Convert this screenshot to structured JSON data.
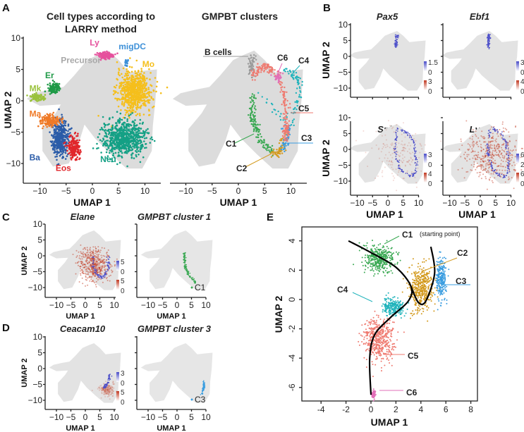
{
  "panel_labels": [
    "A",
    "B",
    "C",
    "D",
    "E"
  ],
  "colors": {
    "Mo": "#f5bf1c",
    "Neu": "#14a085",
    "Ba": "#2b5ca8",
    "Eos": "#e1262b",
    "Ma": "#ef7a27",
    "Er": "#1f9a47",
    "Mk": "#9ac23c",
    "Ly": "#e6519d",
    "migDC": "#3d90d8",
    "Precursor": "#d9d9d9",
    "C1": "#39a852",
    "C2": "#d39a1e",
    "C3": "#3a9de0",
    "C4": "#1fb3bb",
    "C5": "#ef7a70",
    "C6": "#e26fb8",
    "Bcells": "#9a9a9a",
    "expr_low": "#c23a22",
    "expr_high": "#4a4dc9"
  },
  "chart_data": [
    {
      "id": "A-left",
      "type": "scatter",
      "title": "Cell types according to LARRY method",
      "xlabel": "UMAP 1",
      "ylabel": "UMAP 2",
      "xlim": [
        -13,
        13
      ],
      "ylim": [
        -13,
        10
      ],
      "xticks": [
        -10,
        -5,
        0,
        5,
        10
      ],
      "yticks": [
        10,
        5,
        0,
        -5,
        -10
      ],
      "groups": [
        {
          "name": "Mo",
          "center": [
            8,
            1.5
          ],
          "spread": [
            3.2,
            3.2
          ],
          "n": 700
        },
        {
          "name": "Neu",
          "center": [
            6,
            -6
          ],
          "spread": [
            4,
            2.8
          ],
          "n": 700
        },
        {
          "name": "Ba",
          "center": [
            -6,
            -6
          ],
          "spread": [
            1.6,
            2.8
          ],
          "n": 400
        },
        {
          "name": "Eos",
          "center": [
            -3.5,
            -7.5
          ],
          "spread": [
            1.2,
            1.8
          ],
          "n": 160
        },
        {
          "name": "Ma",
          "center": [
            -8,
            -3.2
          ],
          "spread": [
            2,
            0.9
          ],
          "n": 160
        },
        {
          "name": "Er",
          "center": [
            -7.5,
            2
          ],
          "spread": [
            1.1,
            0.9
          ],
          "n": 110
        },
        {
          "name": "Mk",
          "center": [
            -10.5,
            0.5
          ],
          "spread": [
            1.3,
            0.6
          ],
          "n": 100
        },
        {
          "name": "Ly",
          "center": [
            2.5,
            7.2
          ],
          "spread": [
            1.5,
            0.6
          ],
          "n": 120
        },
        {
          "name": "migDC",
          "center": [
            6.5,
            6
          ],
          "spread": [
            0.3,
            0.6
          ],
          "n": 25
        }
      ],
      "labels": [
        {
          "text": "Precursor",
          "at": [
            -6,
            6
          ]
        },
        {
          "text": "Ly",
          "at": [
            -0.5,
            8.8
          ]
        },
        {
          "text": "migDC",
          "at": [
            5,
            8.2
          ]
        },
        {
          "text": "Mo",
          "at": [
            9.5,
            5.4
          ]
        },
        {
          "text": "Er",
          "at": [
            -9,
            3.6
          ]
        },
        {
          "text": "Mk",
          "at": [
            -12,
            1.5
          ]
        },
        {
          "text": "Ma",
          "at": [
            -12,
            -2.5
          ]
        },
        {
          "text": "Ba",
          "at": [
            -12,
            -9.5
          ]
        },
        {
          "text": "Eos",
          "at": [
            -7,
            -11.2
          ]
        },
        {
          "text": "Neu",
          "at": [
            1.5,
            -9.8
          ]
        }
      ]
    },
    {
      "id": "A-right",
      "type": "scatter",
      "title": "GMPBT clusters",
      "xlabel": "UMAP 1",
      "xlim": [
        -13,
        13
      ],
      "xticks": [
        -10,
        -5,
        0,
        5,
        10
      ],
      "clusters": [
        {
          "name": "B cells",
          "path": [
            [
              2.8,
              7
            ],
            [
              2.3,
              5.5
            ],
            [
              2.6,
              4
            ]
          ],
          "n": 60
        },
        {
          "name": "C1",
          "path": [
            [
              2.5,
              1
            ],
            [
              2.7,
              -3
            ],
            [
              4,
              -6
            ],
            [
              6.5,
              -8.5
            ]
          ],
          "n": 140
        },
        {
          "name": "C2",
          "path": [
            [
              6.5,
              -8.5
            ],
            [
              8,
              -8
            ],
            [
              8.8,
              -6
            ]
          ],
          "n": 60
        },
        {
          "name": "C3",
          "path": [
            [
              8.5,
              -8
            ],
            [
              9.3,
              -6
            ],
            [
              9.3,
              -4
            ]
          ],
          "n": 60
        },
        {
          "name": "C4",
          "path": [
            [
              9,
              5
            ],
            [
              11,
              4
            ],
            [
              12,
              2
            ],
            [
              10,
              -4
            ],
            [
              3,
              2
            ]
          ],
          "n": 90
        },
        {
          "name": "C5",
          "path": [
            [
              2.6,
              4
            ],
            [
              5,
              5.5
            ],
            [
              7.5,
              4.5
            ],
            [
              9,
              0
            ],
            [
              9.2,
              -4
            ],
            [
              8.8,
              -6
            ]
          ],
          "n": 220
        },
        {
          "name": "C6",
          "path": [
            [
              7,
              4.2
            ],
            [
              8,
              3.5
            ]
          ],
          "n": 30
        }
      ],
      "labels": [
        {
          "text": "B cells",
          "key": "Bcells"
        },
        {
          "text": "C6",
          "key": "C6"
        },
        {
          "text": "C4",
          "key": "C4"
        },
        {
          "text": "C5",
          "key": "C5"
        },
        {
          "text": "C3",
          "key": "C3"
        },
        {
          "text": "C1",
          "key": "C1"
        },
        {
          "text": "C2",
          "key": "C2"
        }
      ]
    },
    {
      "id": "B",
      "type": "scatter",
      "panels": [
        {
          "gene": "Pax5",
          "scale_high": [
            "1.5",
            "0"
          ],
          "scale_low": [
            "3",
            "0"
          ],
          "expr_low": 0.02,
          "expr_high": 0.3
        },
        {
          "gene": "Ebf1",
          "scale_high": [
            "3",
            "0"
          ],
          "scale_low": [
            "4",
            "0"
          ],
          "expr_low": 0.02,
          "expr_high": 0.4
        },
        {
          "gene": "Spi1",
          "scale_high": [
            "3",
            "0"
          ],
          "scale_low": [
            "4",
            "0"
          ],
          "expr_low": 0.35,
          "expr_high": 0.9
        },
        {
          "gene": "Lyz2",
          "scale_high": [
            "6",
            "2"
          ],
          "scale_low": [
            "6",
            "0"
          ],
          "expr_low": 0.85,
          "expr_high": 0.9
        }
      ],
      "xlabel": "UMAP 1",
      "ylabel": "UMAP 2",
      "xticks": [
        -10,
        -5,
        0,
        5,
        10
      ],
      "yticks": [
        10,
        5,
        0,
        -5,
        -10
      ]
    },
    {
      "id": "C",
      "type": "scatter",
      "gene": "Elane",
      "scale_high": [
        "5",
        "0"
      ],
      "scale_low": [
        "5",
        "0"
      ],
      "cluster_title": "GMPBT cluster 1",
      "cluster": "C1",
      "xlabel": "UMAP 1",
      "ylabel": "UMAP 2",
      "xticks": [
        -10,
        -5,
        0,
        5,
        10
      ],
      "yticks": [
        10,
        5,
        0,
        -5,
        -10
      ]
    },
    {
      "id": "D",
      "type": "scatter",
      "gene": "Ceacam10",
      "scale_high": [
        "3",
        "0"
      ],
      "scale_low": [
        "5",
        "0"
      ],
      "cluster_title": "GMPBT cluster 3",
      "cluster": "C3",
      "xlabel": "UMAP 1",
      "ylabel": "UMAP 2",
      "xticks": [
        -10,
        -5,
        0,
        5,
        10
      ],
      "yticks": [
        10,
        5,
        0,
        -5,
        -10
      ]
    },
    {
      "id": "E",
      "type": "scatter",
      "xlabel": "UMAP 1",
      "ylabel": "UMAP 2",
      "xlim": [
        -5.3,
        8.5
      ],
      "ylim": [
        -7,
        4.9
      ],
      "xticks": [
        -4,
        -2,
        0,
        2,
        4,
        6,
        8
      ],
      "yticks": [
        4,
        2,
        0,
        -2,
        -4,
        -6
      ],
      "clusters": [
        {
          "name": "C1",
          "center": [
            0.6,
            2.8
          ],
          "spread": [
            1.2,
            0.9
          ],
          "n": 380
        },
        {
          "name": "C2",
          "center": [
            4,
            0.8
          ],
          "spread": [
            0.9,
            1.5
          ],
          "n": 420
        },
        {
          "name": "C3",
          "center": [
            5.6,
            1.4
          ],
          "spread": [
            0.45,
            1.4
          ],
          "n": 260
        },
        {
          "name": "C4",
          "center": [
            1.8,
            -0.5
          ],
          "spread": [
            0.8,
            0.6
          ],
          "n": 220
        },
        {
          "name": "C5",
          "center": [
            0.6,
            -2.8
          ],
          "spread": [
            1.2,
            1.5
          ],
          "n": 480
        },
        {
          "name": "C6",
          "center": [
            0.2,
            -6.5
          ],
          "spread": [
            0.15,
            0.3
          ],
          "n": 60
        }
      ],
      "trajectory": [
        [
          [
            -1.8,
            4
          ],
          [
            0,
            3.2
          ],
          [
            2,
            2.2
          ],
          [
            3.2,
            0.9
          ],
          [
            3,
            -0.1
          ],
          [
            1.6,
            -1.2
          ],
          [
            0.3,
            -2.4
          ],
          [
            -0.1,
            -4
          ],
          [
            0,
            -6.5
          ]
        ],
        [
          [
            3.2,
            0.9
          ],
          [
            3.8,
            -0.2
          ],
          [
            4.4,
            -0.1
          ],
          [
            5.1,
            1.8
          ],
          [
            4.8,
            3.6
          ]
        ]
      ],
      "labels": [
        {
          "text": "C1",
          "key": "C1",
          "note": "(starting point)"
        },
        {
          "text": "C2",
          "key": "C2"
        },
        {
          "text": "C3",
          "key": "C3"
        },
        {
          "text": "C4",
          "key": "C4"
        },
        {
          "text": "C5",
          "key": "C5"
        },
        {
          "text": "C6",
          "key": "C6"
        }
      ]
    }
  ]
}
